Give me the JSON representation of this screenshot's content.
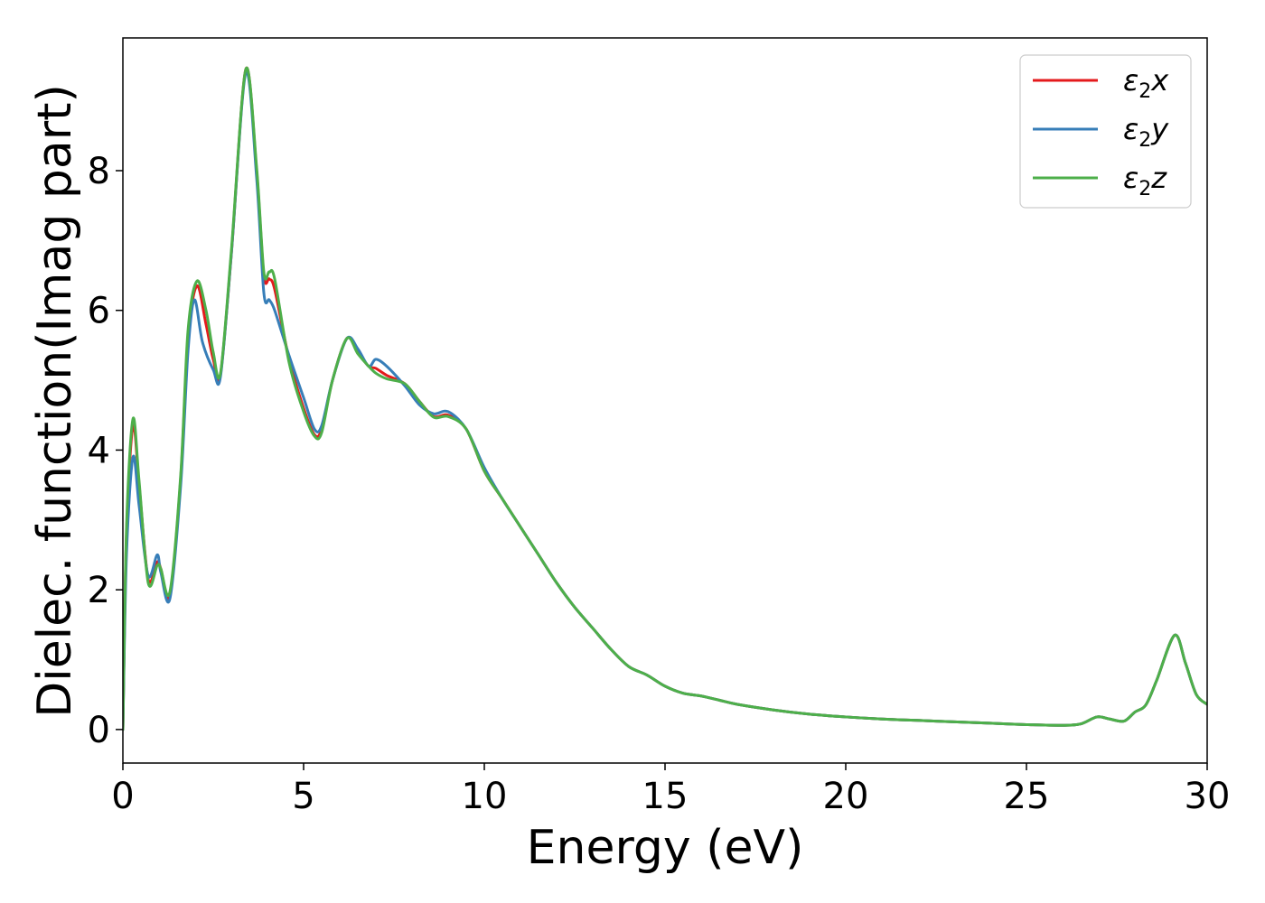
{
  "chart_data": {
    "type": "line",
    "title": "",
    "xlabel": "Energy (eV)",
    "ylabel": "Dielec. function(Imag part)",
    "xlim": [
      0,
      30
    ],
    "ylim": [
      -0.48,
      9.9
    ],
    "xticks": [
      0,
      5,
      10,
      15,
      20,
      25,
      30
    ],
    "yticks": [
      0,
      2,
      4,
      6,
      8
    ],
    "grid": false,
    "legend_position": "top-right",
    "series": [
      {
        "name": "ε2x",
        "legend": {
          "base": "ε",
          "sub": "2",
          "suffix": "x"
        },
        "color": "#e41a1c",
        "x": [
          0,
          0.1,
          0.28,
          0.45,
          0.7,
          0.95,
          1.05,
          1.3,
          1.6,
          1.8,
          2.05,
          2.3,
          2.5,
          2.7,
          3.0,
          3.4,
          3.7,
          3.9,
          4.05,
          4.2,
          4.6,
          5.0,
          5.3,
          5.5,
          5.8,
          6.2,
          6.5,
          6.8,
          7.0,
          7.3,
          7.8,
          8.2,
          8.6,
          9.0,
          9.5,
          10.0,
          10.5,
          11.0,
          11.5,
          12.0,
          12.5,
          13.0,
          13.5,
          14.0,
          14.5,
          15.0,
          15.5,
          16.0,
          16.5,
          17.0,
          18.0,
          19.0,
          20.0,
          21.0,
          22.0,
          23.0,
          24.0,
          25.0,
          26.0,
          26.5,
          26.95,
          27.3,
          27.7,
          28.0,
          28.3,
          28.6,
          29.1,
          29.4,
          29.7,
          30.0
        ],
        "y": [
          0,
          2.8,
          4.35,
          3.5,
          2.15,
          2.4,
          2.3,
          1.92,
          3.6,
          5.6,
          6.35,
          5.8,
          5.3,
          5.08,
          6.8,
          9.45,
          8.0,
          6.5,
          6.45,
          6.3,
          5.3,
          4.6,
          4.22,
          4.3,
          5.0,
          5.6,
          5.4,
          5.2,
          5.17,
          5.07,
          4.95,
          4.7,
          4.48,
          4.5,
          4.3,
          3.7,
          3.3,
          2.9,
          2.5,
          2.1,
          1.75,
          1.45,
          1.15,
          0.9,
          0.78,
          0.62,
          0.52,
          0.48,
          0.42,
          0.36,
          0.28,
          0.22,
          0.18,
          0.15,
          0.13,
          0.11,
          0.09,
          0.07,
          0.06,
          0.08,
          0.18,
          0.15,
          0.12,
          0.25,
          0.35,
          0.7,
          1.35,
          0.95,
          0.5,
          0.36
        ]
      },
      {
        "name": "ε2y",
        "legend": {
          "base": "ε",
          "sub": "2",
          "suffix": "y"
        },
        "color": "#377eb8",
        "x": [
          0,
          0.1,
          0.28,
          0.45,
          0.7,
          0.95,
          1.05,
          1.3,
          1.6,
          1.8,
          1.98,
          2.2,
          2.5,
          2.7,
          3.0,
          3.4,
          3.7,
          3.9,
          4.05,
          4.2,
          4.6,
          5.0,
          5.3,
          5.5,
          5.8,
          6.2,
          6.5,
          6.8,
          7.0,
          7.3,
          7.8,
          8.2,
          8.6,
          9.0,
          9.5,
          10.0,
          10.5,
          11.0,
          11.5,
          12.0,
          12.5,
          13.0,
          13.5,
          14.0,
          14.5,
          15.0,
          15.5,
          16.0,
          16.5,
          17.0,
          18.0,
          19.0,
          20.0,
          21.0,
          22.0,
          23.0,
          24.0,
          25.0,
          26.0,
          26.5,
          26.95,
          27.3,
          27.7,
          28.0,
          28.3,
          28.6,
          29.1,
          29.4,
          29.7,
          30.0
        ],
        "y": [
          0,
          2.5,
          3.9,
          3.2,
          2.2,
          2.5,
          2.25,
          1.87,
          3.5,
          5.4,
          6.15,
          5.55,
          5.15,
          5.05,
          6.8,
          9.4,
          7.9,
          6.25,
          6.15,
          6.0,
          5.35,
          4.75,
          4.3,
          4.35,
          5.0,
          5.6,
          5.45,
          5.2,
          5.3,
          5.2,
          4.92,
          4.65,
          4.52,
          4.55,
          4.3,
          3.75,
          3.3,
          2.9,
          2.5,
          2.1,
          1.75,
          1.45,
          1.15,
          0.9,
          0.78,
          0.62,
          0.52,
          0.48,
          0.42,
          0.36,
          0.28,
          0.22,
          0.18,
          0.15,
          0.13,
          0.11,
          0.09,
          0.07,
          0.06,
          0.08,
          0.18,
          0.15,
          0.12,
          0.25,
          0.35,
          0.7,
          1.35,
          0.95,
          0.5,
          0.36
        ]
      },
      {
        "name": "ε2z",
        "legend": {
          "base": "ε",
          "sub": "2",
          "suffix": "z"
        },
        "color": "#4daf4a",
        "x": [
          0,
          0.1,
          0.28,
          0.45,
          0.7,
          0.95,
          1.05,
          1.3,
          1.6,
          1.8,
          2.05,
          2.3,
          2.5,
          2.7,
          3.0,
          3.4,
          3.7,
          3.9,
          4.05,
          4.2,
          4.6,
          5.0,
          5.3,
          5.5,
          5.8,
          6.2,
          6.5,
          6.8,
          7.0,
          7.3,
          7.8,
          8.2,
          8.6,
          9.0,
          9.5,
          10.0,
          10.5,
          11.0,
          11.5,
          12.0,
          12.5,
          13.0,
          13.5,
          14.0,
          14.5,
          15.0,
          15.5,
          16.0,
          16.5,
          17.0,
          18.0,
          19.0,
          20.0,
          21.0,
          22.0,
          23.0,
          24.0,
          25.0,
          26.0,
          26.5,
          26.95,
          27.3,
          27.7,
          28.0,
          28.3,
          28.6,
          29.1,
          29.4,
          29.7,
          30.0
        ],
        "y": [
          0,
          2.9,
          4.45,
          3.55,
          2.1,
          2.35,
          2.3,
          1.97,
          3.65,
          5.7,
          6.42,
          6.0,
          5.4,
          5.1,
          6.85,
          9.45,
          8.05,
          6.55,
          6.55,
          6.45,
          5.25,
          4.55,
          4.2,
          4.25,
          5.0,
          5.6,
          5.38,
          5.2,
          5.1,
          5.02,
          4.95,
          4.7,
          4.47,
          4.48,
          4.3,
          3.7,
          3.3,
          2.9,
          2.5,
          2.1,
          1.75,
          1.45,
          1.15,
          0.9,
          0.78,
          0.62,
          0.52,
          0.48,
          0.42,
          0.36,
          0.28,
          0.22,
          0.18,
          0.15,
          0.13,
          0.11,
          0.09,
          0.07,
          0.06,
          0.08,
          0.18,
          0.15,
          0.12,
          0.25,
          0.35,
          0.7,
          1.35,
          0.95,
          0.5,
          0.36
        ]
      }
    ]
  }
}
